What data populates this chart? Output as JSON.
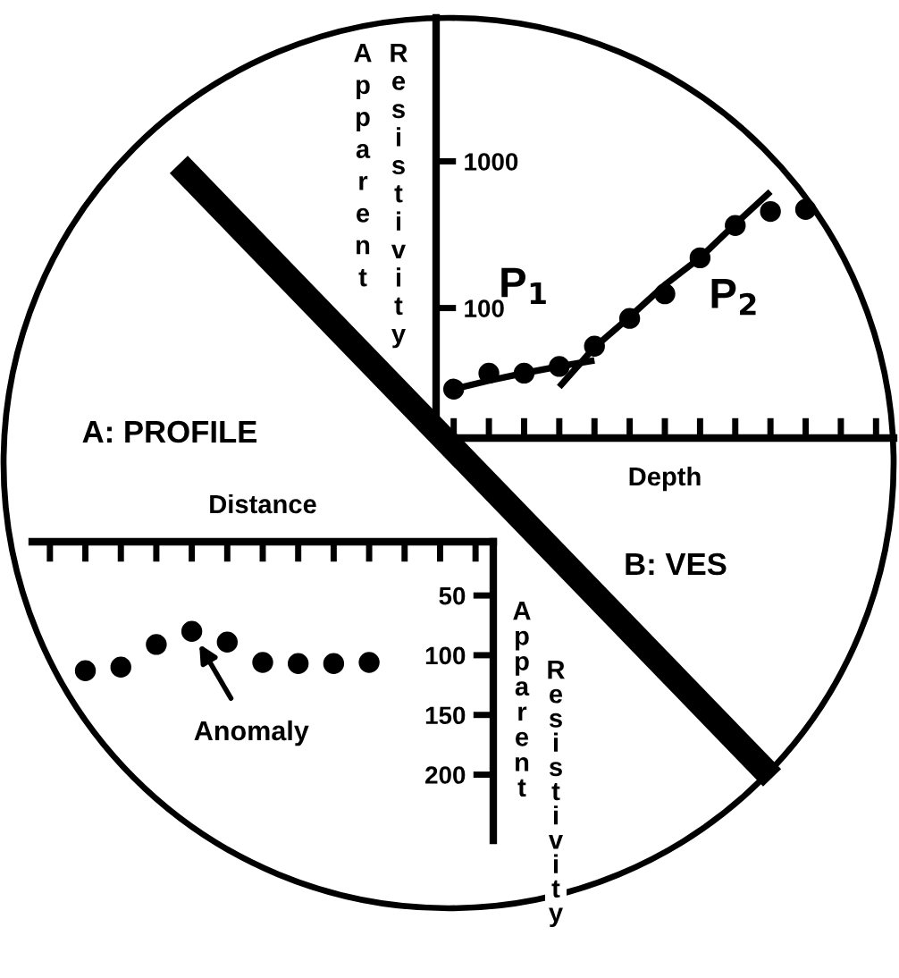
{
  "chart_data": [
    {
      "type": "scatter",
      "title": "B: VES",
      "xlabel": "Depth",
      "ylabel": "Apparent Resistivity",
      "categories": [
        null,
        null,
        null,
        null,
        null,
        null,
        null,
        null,
        null,
        null,
        null,
        null,
        null
      ],
      "log": true,
      "ylim": [
        13,
        9500
      ],
      "yticks": [
        100,
        1000
      ],
      "marker": "circle",
      "series": [
        {
          "color": "#000000",
          "values": [
            28,
            36,
            36,
            40,
            55,
            85,
            125,
            220,
            365,
            455,
            470,
            null,
            null
          ]
        },
        {
          "type": "line",
          "marker": "none",
          "name": "P$_{1}$",
          "color": "#000000",
          "values": [
            28,
            32,
            36,
            40,
            44,
            null,
            null,
            null,
            null,
            null,
            null,
            null,
            null
          ]
        },
        {
          "type": "line",
          "marker": "none",
          "name": "P$_{2}$",
          "color": "#000000",
          "values": [
            null,
            null,
            null,
            29,
            54,
            87,
            144,
            220,
            374,
            621,
            null,
            null,
            null
          ]
        }
      ]
    },
    {
      "type": "scatter",
      "title": "A: PROFILE",
      "xlabel": "Distance",
      "ylabel": "Apparent Resistivity",
      "categories": [
        null,
        null,
        null,
        null,
        null,
        null,
        null,
        null,
        null,
        null,
        null,
        null,
        null
      ],
      "ylim": [
        255,
        5
      ],
      "yticks": [
        50,
        100,
        150,
        200
      ],
      "marker": "circle",
      "annotations": [
        "Anomaly"
      ],
      "series": [
        {
          "color": "#000000",
          "values": [
            null,
            113,
            110,
            91,
            80,
            89,
            106,
            107,
            107,
            106,
            null,
            null,
            null
          ]
        }
      ]
    }
  ]
}
